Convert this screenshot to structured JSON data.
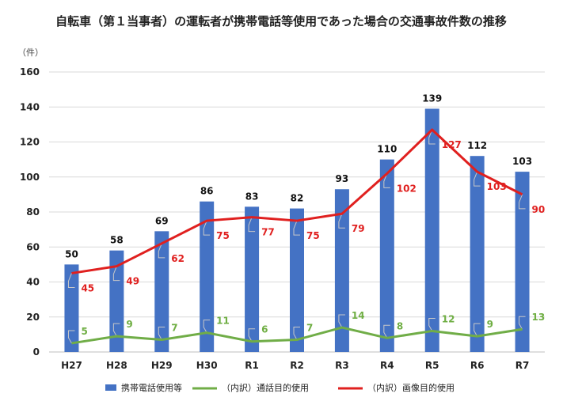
{
  "chart_data": {
    "type": "bar",
    "title": "自転車（第１当事者）の運転者が携帯電話等使用であった場合の交通事故件数の推移",
    "ylabel": "（件）",
    "xlabel": "",
    "ylim": [
      0,
      160
    ],
    "yticks": [
      0,
      20,
      40,
      60,
      80,
      100,
      120,
      140,
      160
    ],
    "grid": true,
    "legend_position": "bottom",
    "categories": [
      "H27",
      "H28",
      "H29",
      "H30",
      "R1",
      "R2",
      "R3",
      "R4",
      "R5",
      "R6",
      "R7"
    ],
    "series": [
      {
        "name": "携帯電話使用等",
        "kind": "bar",
        "color": "#4472c4",
        "values": [
          50,
          58,
          69,
          86,
          83,
          82,
          93,
          110,
          139,
          112,
          103
        ]
      },
      {
        "name": "（内訳）通話目的使用",
        "kind": "line",
        "color": "#70ad47",
        "values": [
          5,
          9,
          7,
          11,
          6,
          7,
          14,
          8,
          12,
          9,
          13
        ]
      },
      {
        "name": "（内訳）画像目的使用",
        "kind": "line",
        "color": "#e0201f",
        "values": [
          45,
          49,
          62,
          75,
          77,
          75,
          79,
          102,
          127,
          103,
          90
        ]
      }
    ]
  }
}
